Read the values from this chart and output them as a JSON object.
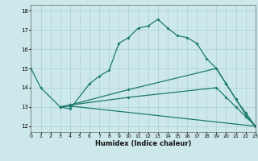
{
  "xlabel": "Humidex (Indice chaleur)",
  "ylabel": "",
  "background_color": "#cde8ea",
  "grid_color": "#afd4d6",
  "line_color": "#1a7a6e",
  "series": [
    {
      "x": [
        0,
        1,
        3,
        4,
        6,
        7,
        8,
        9,
        10,
        11,
        12,
        13,
        14,
        15,
        16,
        17,
        18,
        19,
        20,
        21,
        22,
        23
      ],
      "y": [
        15.0,
        14.0,
        13.0,
        12.9,
        14.2,
        14.6,
        14.9,
        16.3,
        16.6,
        17.1,
        17.2,
        17.55,
        17.1,
        16.7,
        16.6,
        16.3,
        15.5,
        15.0,
        14.2,
        13.4,
        12.6,
        12.0
      ]
    },
    {
      "x": [
        3,
        4,
        23
      ],
      "y": [
        13.0,
        13.05,
        12.0
      ]
    },
    {
      "x": [
        3,
        4,
        10,
        19,
        20,
        21,
        22,
        23
      ],
      "y": [
        13.0,
        13.1,
        13.5,
        14.0,
        13.5,
        13.0,
        12.5,
        12.0
      ]
    },
    {
      "x": [
        3,
        4,
        10,
        19,
        20,
        21,
        22,
        23
      ],
      "y": [
        13.0,
        13.1,
        13.9,
        15.0,
        14.2,
        13.4,
        12.7,
        12.0
      ]
    }
  ],
  "xlim": [
    0,
    23
  ],
  "ylim": [
    11.7,
    18.3
  ],
  "yticks": [
    12,
    13,
    14,
    15,
    16,
    17,
    18
  ],
  "xticks": [
    0,
    1,
    2,
    3,
    4,
    5,
    6,
    7,
    8,
    9,
    10,
    11,
    12,
    13,
    14,
    15,
    16,
    17,
    18,
    19,
    20,
    21,
    22,
    23
  ]
}
